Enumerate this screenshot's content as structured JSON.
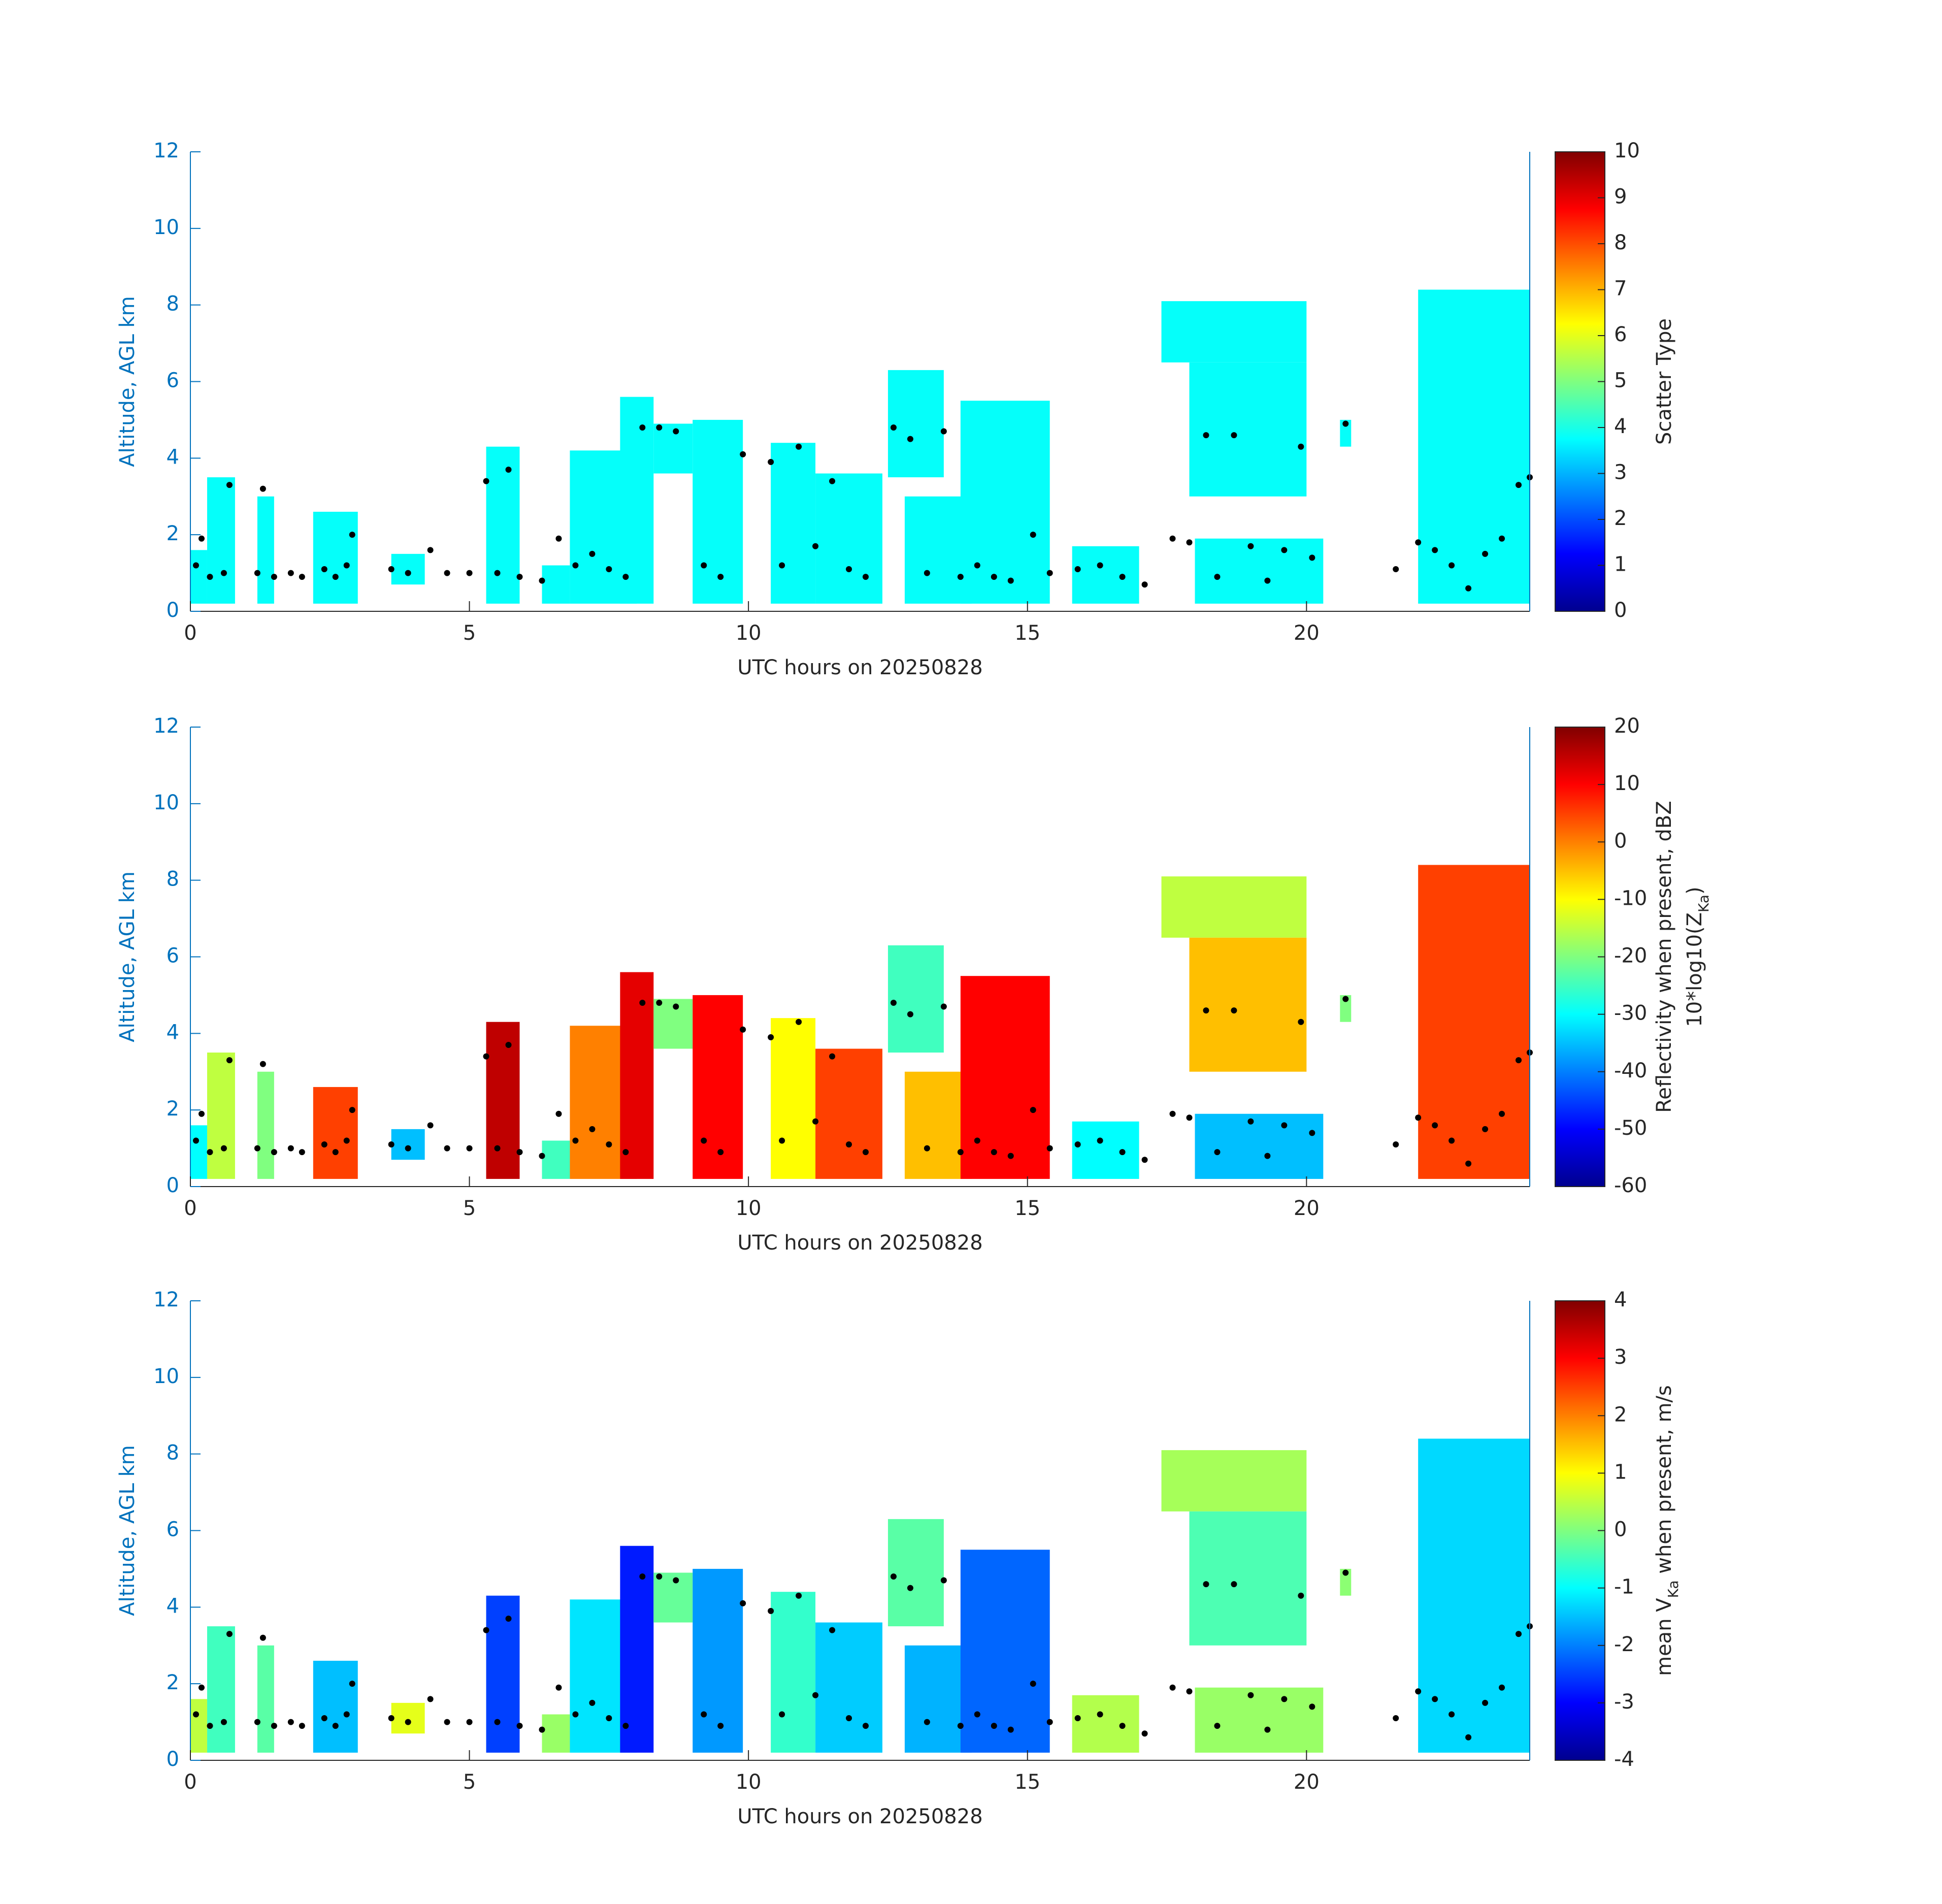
{
  "chart_data": [
    {
      "type": "heatmap",
      "xlabel": "UTC hours on 20250828",
      "ylabel": "Altitude, AGL km",
      "xlim": [
        0,
        24
      ],
      "xticks": [
        0,
        5,
        10,
        15,
        20
      ],
      "ylim": [
        0,
        12
      ],
      "yticks": [
        0,
        2,
        4,
        6,
        8,
        10,
        12
      ],
      "colormap": "jet",
      "clim": [
        0,
        10
      ],
      "cticks": [
        0,
        1,
        2,
        3,
        4,
        5,
        6,
        7,
        8,
        9,
        10
      ],
      "colorbar_label": [
        [
          "Scatter Type"
        ]
      ],
      "points_color": "#000000",
      "cells": [
        [
          0,
          0.3,
          0.2,
          1.6,
          3.8
        ],
        [
          0.3,
          0.8,
          0.2,
          3.5,
          3.8
        ],
        [
          1.2,
          1.5,
          0.2,
          3.0,
          3.8
        ],
        [
          2.2,
          3.0,
          0.2,
          2.6,
          3.8
        ],
        [
          3.6,
          4.2,
          0.7,
          1.5,
          3.8
        ],
        [
          5.3,
          5.9,
          0.2,
          4.3,
          3.8
        ],
        [
          6.3,
          6.8,
          0.2,
          1.2,
          3.8
        ],
        [
          6.8,
          8.0,
          0.2,
          4.2,
          3.8
        ],
        [
          7.7,
          8.3,
          0.2,
          5.6,
          3.8
        ],
        [
          8.3,
          9.0,
          3.6,
          4.9,
          3.8
        ],
        [
          9.0,
          9.9,
          0.2,
          5.0,
          3.8
        ],
        [
          10.4,
          11.2,
          0.2,
          4.4,
          3.8
        ],
        [
          11.2,
          12.4,
          0.2,
          3.6,
          3.8
        ],
        [
          12.5,
          13.5,
          3.5,
          6.3,
          3.8
        ],
        [
          12.8,
          14.0,
          0.2,
          3.0,
          3.8
        ],
        [
          13.8,
          15.4,
          0.2,
          5.5,
          3.8
        ],
        [
          15.8,
          17.0,
          0.2,
          1.7,
          3.8
        ],
        [
          17.4,
          20.0,
          6.5,
          8.1,
          3.8
        ],
        [
          17.9,
          20.0,
          3.0,
          6.5,
          3.8
        ],
        [
          18.0,
          20.3,
          0.2,
          1.9,
          3.8
        ],
        [
          20.6,
          20.8,
          4.3,
          5.0,
          3.8
        ],
        [
          22.0,
          24,
          0.2,
          8.4,
          3.8
        ]
      ],
      "points_x": [
        0.1,
        0.2,
        0.35,
        0.6,
        0.7,
        1.2,
        1.3,
        1.5,
        1.8,
        2.0,
        2.4,
        2.6,
        2.8,
        2.9,
        3.6,
        3.9,
        4.3,
        4.6,
        5.0,
        5.3,
        5.5,
        5.7,
        5.9,
        6.3,
        6.6,
        6.9,
        7.2,
        7.5,
        7.8,
        8.1,
        8.4,
        8.7,
        9.2,
        9.5,
        9.9,
        10.4,
        10.6,
        10.9,
        11.2,
        11.5,
        11.8,
        12.1,
        12.6,
        12.9,
        13.2,
        13.5,
        13.8,
        14.1,
        14.4,
        14.7,
        15.1,
        15.4,
        15.9,
        16.3,
        16.7,
        17.1,
        17.6,
        17.9,
        18.2,
        18.4,
        18.7,
        19.0,
        19.3,
        19.6,
        19.9,
        20.1,
        20.7,
        21.6,
        22.0,
        22.3,
        22.6,
        22.9,
        23.2,
        23.5,
        23.8,
        24.0
      ],
      "points_y": [
        1.2,
        1.9,
        0.9,
        1.0,
        3.3,
        1.0,
        3.2,
        0.9,
        1.0,
        0.9,
        1.1,
        0.9,
        1.2,
        2.0,
        1.1,
        1.0,
        1.6,
        1.0,
        1.0,
        3.4,
        1.0,
        3.7,
        0.9,
        0.8,
        1.9,
        1.2,
        1.5,
        1.1,
        0.9,
        4.8,
        4.8,
        4.7,
        1.2,
        0.9,
        4.1,
        3.9,
        1.2,
        4.3,
        1.7,
        3.4,
        1.1,
        0.9,
        4.8,
        4.5,
        1.0,
        4.7,
        0.9,
        1.2,
        0.9,
        0.8,
        2.0,
        1.0,
        1.1,
        1.2,
        0.9,
        0.7,
        1.9,
        1.8,
        4.6,
        0.9,
        4.6,
        1.7,
        0.8,
        1.6,
        4.3,
        1.4,
        4.9,
        1.1,
        1.8,
        1.6,
        1.2,
        0.6,
        1.5,
        1.9,
        3.3,
        3.5
      ]
    },
    {
      "type": "heatmap",
      "xlabel": "UTC hours on 20250828",
      "ylabel": "Altitude, AGL km",
      "xlim": [
        0,
        24
      ],
      "xticks": [
        0,
        5,
        10,
        15,
        20
      ],
      "ylim": [
        0,
        12
      ],
      "yticks": [
        0,
        2,
        4,
        6,
        8,
        10,
        12
      ],
      "colormap": "jet",
      "clim": [
        -60,
        20
      ],
      "cticks": [
        -60,
        -50,
        -40,
        -30,
        -20,
        -10,
        0,
        10,
        20
      ],
      "colorbar_label": [
        [
          "Reflectivity when present, dBZ"
        ],
        [
          "10*log10(Z",
          "Ka",
          ")"
        ]
      ],
      "cells": [
        [
          0,
          0.3,
          0.2,
          1.6,
          -30
        ],
        [
          0.3,
          0.8,
          0.2,
          3.5,
          -15
        ],
        [
          1.2,
          1.5,
          0.2,
          3.0,
          -20
        ],
        [
          2.2,
          3.0,
          0.2,
          2.6,
          5
        ],
        [
          3.6,
          4.2,
          0.7,
          1.5,
          -35
        ],
        [
          5.3,
          5.9,
          0.2,
          4.3,
          15
        ],
        [
          6.3,
          6.8,
          0.2,
          1.2,
          -25
        ],
        [
          6.8,
          8.0,
          0.2,
          4.2,
          0
        ],
        [
          7.7,
          8.3,
          0.2,
          5.6,
          12
        ],
        [
          8.3,
          9.0,
          3.6,
          4.9,
          -20
        ],
        [
          9.0,
          9.9,
          0.2,
          5.0,
          10
        ],
        [
          10.4,
          11.2,
          0.2,
          4.4,
          -10
        ],
        [
          11.2,
          12.4,
          0.2,
          3.6,
          5
        ],
        [
          12.5,
          13.5,
          3.5,
          6.3,
          -25
        ],
        [
          12.8,
          14.0,
          0.2,
          3.0,
          -5
        ],
        [
          13.8,
          15.4,
          0.2,
          5.5,
          10
        ],
        [
          15.8,
          17.0,
          0.2,
          1.7,
          -30
        ],
        [
          17.4,
          20.0,
          6.5,
          8.1,
          -15
        ],
        [
          17.9,
          20.0,
          3.0,
          6.5,
          -5
        ],
        [
          18.0,
          20.3,
          0.2,
          1.9,
          -35
        ],
        [
          20.6,
          20.8,
          4.3,
          5.0,
          -20
        ],
        [
          22.0,
          24,
          0.2,
          8.4,
          5
        ]
      ]
    },
    {
      "type": "heatmap",
      "xlabel": "UTC hours on 20250828",
      "ylabel": "Altitude, AGL km",
      "xlim": [
        0,
        24
      ],
      "xticks": [
        0,
        5,
        10,
        15,
        20
      ],
      "ylim": [
        0,
        12
      ],
      "yticks": [
        0,
        2,
        4,
        6,
        8,
        10,
        12
      ],
      "colormap": "jet",
      "clim": [
        -4,
        4
      ],
      "cticks": [
        -4,
        -3,
        -2,
        -1,
        0,
        1,
        2,
        3,
        4
      ],
      "colorbar_label": [
        [
          "mean V",
          "Ka",
          " when present, m/s"
        ]
      ],
      "cells": [
        [
          0,
          0.3,
          0.2,
          1.6,
          0.5
        ],
        [
          0.3,
          0.8,
          0.2,
          3.5,
          -0.5
        ],
        [
          1.2,
          1.5,
          0.2,
          3.0,
          -0.3
        ],
        [
          2.2,
          3.0,
          0.2,
          2.6,
          -1.5
        ],
        [
          3.6,
          4.2,
          0.7,
          1.5,
          0.8
        ],
        [
          5.3,
          5.9,
          0.2,
          4.3,
          -2.5
        ],
        [
          6.3,
          6.8,
          0.2,
          1.2,
          0.2
        ],
        [
          6.8,
          8.0,
          0.2,
          4.2,
          -1.2
        ],
        [
          7.7,
          8.3,
          0.2,
          5.6,
          -2.8
        ],
        [
          8.3,
          9.0,
          3.6,
          4.9,
          -0.2
        ],
        [
          9.0,
          9.9,
          0.2,
          5.0,
          -1.8
        ],
        [
          10.4,
          11.2,
          0.2,
          4.4,
          -0.6
        ],
        [
          11.2,
          12.4,
          0.2,
          3.6,
          -1.4
        ],
        [
          12.5,
          13.5,
          3.5,
          6.3,
          -0.3
        ],
        [
          12.8,
          14.0,
          0.2,
          3.0,
          -1.6
        ],
        [
          13.8,
          15.4,
          0.2,
          5.5,
          -2.2
        ],
        [
          15.8,
          17.0,
          0.2,
          1.7,
          0.4
        ],
        [
          17.4,
          20.0,
          6.5,
          8.1,
          0.3
        ],
        [
          17.9,
          20.0,
          3.0,
          6.5,
          -0.4
        ],
        [
          18.0,
          20.3,
          0.2,
          1.9,
          0.2
        ],
        [
          20.6,
          20.8,
          4.3,
          5.0,
          0.1
        ],
        [
          22.0,
          24,
          0.2,
          8.4,
          -1.3
        ]
      ]
    }
  ]
}
